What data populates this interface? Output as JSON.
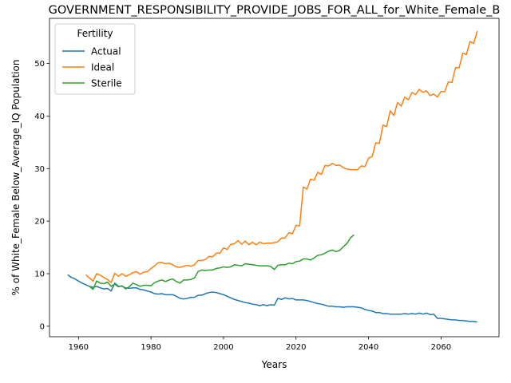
{
  "chart_data": {
    "type": "line",
    "title": "GOVERNMENT_RESPONSIBILITY_PROVIDE_JOBS_FOR_ALL_for_White_Female_B",
    "xlabel": "Years",
    "ylabel": "% of White_Female Below_Average_IQ Population",
    "xlim": [
      1952,
      2076
    ],
    "ylim": [
      -2,
      58.6
    ],
    "xticks": [
      1960,
      1980,
      2000,
      2020,
      2040,
      2060
    ],
    "yticks": [
      0,
      10,
      20,
      30,
      40,
      50
    ],
    "grid": false,
    "legend": {
      "title": "Fertility",
      "placement": "top-left"
    },
    "series": [
      {
        "name": "Actual",
        "color": "#1f77b4",
        "points": [
          [
            1957,
            9.8
          ],
          [
            1958,
            9.3
          ],
          [
            1959,
            9.0
          ],
          [
            1960,
            8.6
          ],
          [
            1961,
            8.2
          ],
          [
            1962,
            7.9
          ],
          [
            1963,
            7.6
          ],
          [
            1964,
            7.4
          ],
          [
            1965,
            7.6
          ],
          [
            1966,
            7.3
          ],
          [
            1967,
            7.1
          ],
          [
            1968,
            7.2
          ],
          [
            1969,
            6.7
          ],
          [
            1970,
            8.2
          ],
          [
            1971,
            7.6
          ],
          [
            1972,
            7.6
          ],
          [
            1973,
            7.3
          ],
          [
            1974,
            7.2
          ],
          [
            1975,
            7.3
          ],
          [
            1976,
            7.3
          ],
          [
            1977,
            7.0
          ],
          [
            1978,
            6.9
          ],
          [
            1979,
            6.7
          ],
          [
            1980,
            6.5
          ],
          [
            1981,
            6.2
          ],
          [
            1982,
            6.1
          ],
          [
            1983,
            6.2
          ],
          [
            1984,
            6.0
          ],
          [
            1985,
            6.0
          ],
          [
            1986,
            6.0
          ],
          [
            1987,
            5.7
          ],
          [
            1988,
            5.3
          ],
          [
            1989,
            5.2
          ],
          [
            1990,
            5.3
          ],
          [
            1991,
            5.5
          ],
          [
            1992,
            5.5
          ],
          [
            1993,
            5.9
          ],
          [
            1994,
            5.9
          ],
          [
            1995,
            6.2
          ],
          [
            1996,
            6.4
          ],
          [
            1997,
            6.5
          ],
          [
            1998,
            6.4
          ],
          [
            1999,
            6.2
          ],
          [
            2000,
            6.0
          ],
          [
            2001,
            5.7
          ],
          [
            2002,
            5.4
          ],
          [
            2003,
            5.1
          ],
          [
            2004,
            4.9
          ],
          [
            2005,
            4.7
          ],
          [
            2006,
            4.5
          ],
          [
            2007,
            4.4
          ],
          [
            2008,
            4.2
          ],
          [
            2009,
            4.1
          ],
          [
            2010,
            3.9
          ],
          [
            2011,
            4.1
          ],
          [
            2012,
            3.9
          ],
          [
            2013,
            4.1
          ],
          [
            2014,
            4.0
          ],
          [
            2015,
            5.3
          ],
          [
            2016,
            5.1
          ],
          [
            2017,
            5.4
          ],
          [
            2018,
            5.2
          ],
          [
            2019,
            5.3
          ],
          [
            2020,
            5.0
          ],
          [
            2021,
            5.0
          ],
          [
            2022,
            5.0
          ],
          [
            2023,
            4.9
          ],
          [
            2024,
            4.7
          ],
          [
            2025,
            4.5
          ],
          [
            2026,
            4.3
          ],
          [
            2027,
            4.2
          ],
          [
            2028,
            4.0
          ],
          [
            2029,
            3.8
          ],
          [
            2030,
            3.8
          ],
          [
            2031,
            3.7
          ],
          [
            2032,
            3.7
          ],
          [
            2033,
            3.6
          ],
          [
            2034,
            3.7
          ],
          [
            2035,
            3.7
          ],
          [
            2036,
            3.7
          ],
          [
            2037,
            3.6
          ],
          [
            2038,
            3.5
          ],
          [
            2039,
            3.2
          ],
          [
            2040,
            3.0
          ],
          [
            2041,
            2.9
          ],
          [
            2042,
            2.6
          ],
          [
            2043,
            2.6
          ],
          [
            2044,
            2.4
          ],
          [
            2045,
            2.4
          ],
          [
            2046,
            2.3
          ],
          [
            2047,
            2.3
          ],
          [
            2048,
            2.3
          ],
          [
            2049,
            2.3
          ],
          [
            2050,
            2.4
          ],
          [
            2051,
            2.3
          ],
          [
            2052,
            2.4
          ],
          [
            2053,
            2.3
          ],
          [
            2054,
            2.5
          ],
          [
            2055,
            2.3
          ],
          [
            2056,
            2.5
          ],
          [
            2057,
            2.2
          ],
          [
            2058,
            2.3
          ],
          [
            2059,
            1.5
          ],
          [
            2060,
            1.5
          ],
          [
            2061,
            1.4
          ],
          [
            2062,
            1.3
          ],
          [
            2063,
            1.2
          ],
          [
            2064,
            1.2
          ],
          [
            2065,
            1.1
          ],
          [
            2066,
            1.1
          ],
          [
            2067,
            1.0
          ],
          [
            2068,
            0.9
          ],
          [
            2069,
            0.9
          ],
          [
            2070,
            0.8
          ]
        ]
      },
      {
        "name": "Ideal",
        "color": "#ff7f0e",
        "points": [
          [
            1962,
            9.8
          ],
          [
            1963,
            9.2
          ],
          [
            1964,
            8.6
          ],
          [
            1965,
            10.0
          ],
          [
            1966,
            9.7
          ],
          [
            1967,
            9.3
          ],
          [
            1968,
            8.9
          ],
          [
            1969,
            8.3
          ],
          [
            1970,
            10.1
          ],
          [
            1971,
            9.5
          ],
          [
            1972,
            10.0
          ],
          [
            1973,
            9.5
          ],
          [
            1974,
            9.8
          ],
          [
            1975,
            10.2
          ],
          [
            1976,
            10.4
          ],
          [
            1977,
            9.9
          ],
          [
            1978,
            10.3
          ],
          [
            1979,
            10.4
          ],
          [
            1980,
            11.0
          ],
          [
            1981,
            11.5
          ],
          [
            1982,
            12.1
          ],
          [
            1983,
            12.1
          ],
          [
            1984,
            11.9
          ],
          [
            1985,
            12.0
          ],
          [
            1986,
            11.7
          ],
          [
            1987,
            11.3
          ],
          [
            1988,
            11.2
          ],
          [
            1989,
            11.4
          ],
          [
            1990,
            11.6
          ],
          [
            1991,
            11.4
          ],
          [
            1992,
            11.7
          ],
          [
            1993,
            12.5
          ],
          [
            1994,
            12.5
          ],
          [
            1995,
            12.7
          ],
          [
            1996,
            13.3
          ],
          [
            1997,
            13.2
          ],
          [
            1998,
            13.9
          ],
          [
            1999,
            13.9
          ],
          [
            2000,
            14.9
          ],
          [
            2001,
            14.6
          ],
          [
            2002,
            15.6
          ],
          [
            2003,
            15.7
          ],
          [
            2004,
            16.3
          ],
          [
            2005,
            15.6
          ],
          [
            2006,
            16.2
          ],
          [
            2007,
            15.5
          ],
          [
            2008,
            16.0
          ],
          [
            2009,
            15.5
          ],
          [
            2010,
            16.0
          ],
          [
            2011,
            15.7
          ],
          [
            2012,
            15.8
          ],
          [
            2013,
            15.8
          ],
          [
            2014,
            15.9
          ],
          [
            2015,
            16.1
          ],
          [
            2016,
            16.8
          ],
          [
            2017,
            16.8
          ],
          [
            2018,
            17.8
          ],
          [
            2019,
            17.6
          ],
          [
            2020,
            19.2
          ],
          [
            2021,
            19.1
          ],
          [
            2022,
            26.5
          ],
          [
            2023,
            26.1
          ],
          [
            2024,
            28.0
          ],
          [
            2025,
            27.8
          ],
          [
            2026,
            29.3
          ],
          [
            2027,
            28.9
          ],
          [
            2028,
            30.6
          ],
          [
            2029,
            30.5
          ],
          [
            2030,
            31.0
          ],
          [
            2031,
            30.6
          ],
          [
            2032,
            30.7
          ],
          [
            2033,
            30.2
          ],
          [
            2034,
            29.9
          ],
          [
            2035,
            29.8
          ],
          [
            2036,
            29.8
          ],
          [
            2037,
            29.8
          ],
          [
            2038,
            30.5
          ],
          [
            2039,
            30.4
          ],
          [
            2040,
            32.0
          ],
          [
            2041,
            32.3
          ],
          [
            2042,
            34.9
          ],
          [
            2043,
            34.8
          ],
          [
            2044,
            38.3
          ],
          [
            2045,
            38.0
          ],
          [
            2046,
            41.0
          ],
          [
            2047,
            40.1
          ],
          [
            2048,
            42.6
          ],
          [
            2049,
            41.9
          ],
          [
            2050,
            43.6
          ],
          [
            2051,
            43.1
          ],
          [
            2052,
            44.5
          ],
          [
            2053,
            44.1
          ],
          [
            2054,
            45.1
          ],
          [
            2055,
            44.5
          ],
          [
            2056,
            44.8
          ],
          [
            2057,
            43.9
          ],
          [
            2058,
            44.2
          ],
          [
            2059,
            43.6
          ],
          [
            2060,
            44.7
          ],
          [
            2061,
            44.6
          ],
          [
            2062,
            46.5
          ],
          [
            2063,
            46.4
          ],
          [
            2064,
            49.2
          ],
          [
            2065,
            49.2
          ],
          [
            2066,
            52.0
          ],
          [
            2067,
            51.7
          ],
          [
            2068,
            54.2
          ],
          [
            2069,
            53.8
          ],
          [
            2070,
            56.2
          ]
        ]
      },
      {
        "name": "Sterile",
        "color": "#2ca02c",
        "points": [
          [
            1963,
            7.6
          ],
          [
            1964,
            7.0
          ],
          [
            1965,
            8.6
          ],
          [
            1966,
            8.2
          ],
          [
            1967,
            8.1
          ],
          [
            1968,
            8.4
          ],
          [
            1969,
            7.6
          ],
          [
            1970,
            8.0
          ],
          [
            1971,
            7.5
          ],
          [
            1972,
            7.7
          ],
          [
            1973,
            7.1
          ],
          [
            1974,
            7.5
          ],
          [
            1975,
            8.2
          ],
          [
            1976,
            7.9
          ],
          [
            1977,
            7.6
          ],
          [
            1978,
            7.8
          ],
          [
            1979,
            7.8
          ],
          [
            1980,
            7.7
          ],
          [
            1981,
            8.3
          ],
          [
            1982,
            8.6
          ],
          [
            1983,
            8.8
          ],
          [
            1984,
            8.5
          ],
          [
            1985,
            8.8
          ],
          [
            1986,
            9.0
          ],
          [
            1987,
            8.5
          ],
          [
            1988,
            8.2
          ],
          [
            1989,
            8.8
          ],
          [
            1990,
            8.8
          ],
          [
            1991,
            8.9
          ],
          [
            1992,
            9.2
          ],
          [
            1993,
            10.4
          ],
          [
            1994,
            10.7
          ],
          [
            1995,
            10.6
          ],
          [
            1996,
            10.7
          ],
          [
            1997,
            10.7
          ],
          [
            1998,
            11.0
          ],
          [
            1999,
            11.1
          ],
          [
            2000,
            11.3
          ],
          [
            2001,
            11.2
          ],
          [
            2002,
            11.3
          ],
          [
            2003,
            11.7
          ],
          [
            2004,
            11.6
          ],
          [
            2005,
            11.5
          ],
          [
            2006,
            11.9
          ],
          [
            2007,
            11.8
          ],
          [
            2008,
            11.7
          ],
          [
            2009,
            11.6
          ],
          [
            2010,
            11.5
          ],
          [
            2011,
            11.5
          ],
          [
            2012,
            11.5
          ],
          [
            2013,
            11.4
          ],
          [
            2014,
            10.8
          ],
          [
            2015,
            11.6
          ],
          [
            2016,
            11.7
          ],
          [
            2017,
            11.7
          ],
          [
            2018,
            12.0
          ],
          [
            2019,
            11.9
          ],
          [
            2020,
            12.3
          ],
          [
            2021,
            12.4
          ],
          [
            2022,
            12.8
          ],
          [
            2023,
            12.8
          ],
          [
            2024,
            12.6
          ],
          [
            2025,
            13.0
          ],
          [
            2026,
            13.5
          ],
          [
            2027,
            13.6
          ],
          [
            2028,
            13.9
          ],
          [
            2029,
            14.3
          ],
          [
            2030,
            14.5
          ],
          [
            2031,
            14.2
          ],
          [
            2032,
            14.4
          ],
          [
            2033,
            15.1
          ],
          [
            2034,
            15.7
          ],
          [
            2035,
            16.8
          ],
          [
            2036,
            17.4
          ]
        ]
      }
    ]
  }
}
